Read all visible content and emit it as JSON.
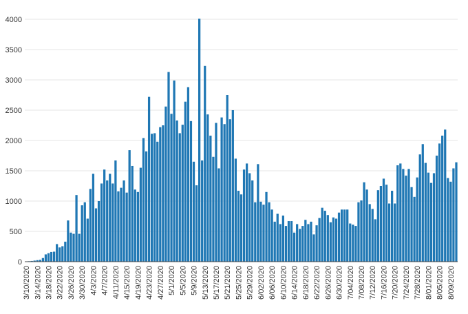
{
  "chart_data": {
    "type": "bar",
    "title": "",
    "xlabel": "",
    "ylabel": "",
    "ylim": [
      0,
      4000
    ],
    "y_ticks": [
      0,
      500,
      1000,
      1500,
      2000,
      2500,
      3000,
      3500,
      4000
    ],
    "y_tick_labels": [
      "0",
      "500",
      "1000",
      "1500",
      "2000",
      "2500",
      "3000",
      "3500",
      "4000"
    ],
    "x_tick_labels": [
      "3/10/2020",
      "3/14/2020",
      "3/18/2020",
      "3/22/2020",
      "3/26/2020",
      "3/30/2020",
      "4/3/2020",
      "4/7/2020",
      "4/11/2020",
      "4/15/2020",
      "4/19/2020",
      "4/23/2020",
      "4/27/2020",
      "5/1/2020",
      "5/5/2020",
      "5/9/2020",
      "5/13/2020",
      "5/17/2020",
      "5/21/2020",
      "5/25/2020",
      "5/29/2020",
      "6/02/2020",
      "6/06/2020",
      "6/10/2020",
      "6/14/2020",
      "6/18/2020",
      "6/22/2020",
      "6/26/2020",
      "6/30/2020",
      "7/04/2020",
      "7/08/2020",
      "7/12/2020",
      "7/16/2020",
      "7/20/2020",
      "7/24/2020",
      "7/28/2020",
      "8/01/2020",
      "8/05/2020",
      "8/09/2020"
    ],
    "x_start": "3/10/2020",
    "x_end": "8/12/2020",
    "grid": true,
    "legend": "none",
    "color": "#1f77b4",
    "values": [
      5,
      8,
      12,
      18,
      25,
      30,
      60,
      120,
      140,
      160,
      165,
      290,
      235,
      255,
      330,
      680,
      480,
      460,
      1100,
      460,
      930,
      980,
      710,
      1200,
      1450,
      880,
      1000,
      1290,
      1520,
      1340,
      1450,
      1290,
      1670,
      1160,
      1220,
      1340,
      1140,
      1840,
      1580,
      1190,
      1150,
      1550,
      2040,
      1820,
      2720,
      2110,
      2120,
      1980,
      2220,
      2250,
      2560,
      3130,
      2440,
      2990,
      2330,
      2120,
      2260,
      2640,
      2880,
      2320,
      1650,
      1260,
      4010,
      1670,
      3230,
      2430,
      2080,
      1730,
      2290,
      1540,
      2380,
      2270,
      2750,
      2350,
      2500,
      1700,
      1170,
      1110,
      1520,
      1620,
      1460,
      1340,
      980,
      1610,
      990,
      940,
      1150,
      980,
      860,
      660,
      790,
      620,
      760,
      590,
      670,
      670,
      480,
      620,
      540,
      590,
      690,
      620,
      660,
      450,
      600,
      720,
      890,
      840,
      770,
      650,
      730,
      710,
      810,
      860,
      860,
      860,
      630,
      610,
      590,
      980,
      1010,
      1310,
      1190,
      950,
      870,
      700,
      1180,
      1250,
      1370,
      1270,
      960,
      1170,
      960,
      1590,
      1620,
      1530,
      1420,
      1530,
      1230,
      1070,
      1390,
      1770,
      1940,
      1630,
      1470,
      1300,
      1460,
      1750,
      1950,
      2080,
      2180,
      1380,
      1320,
      1540,
      1640
    ]
  }
}
